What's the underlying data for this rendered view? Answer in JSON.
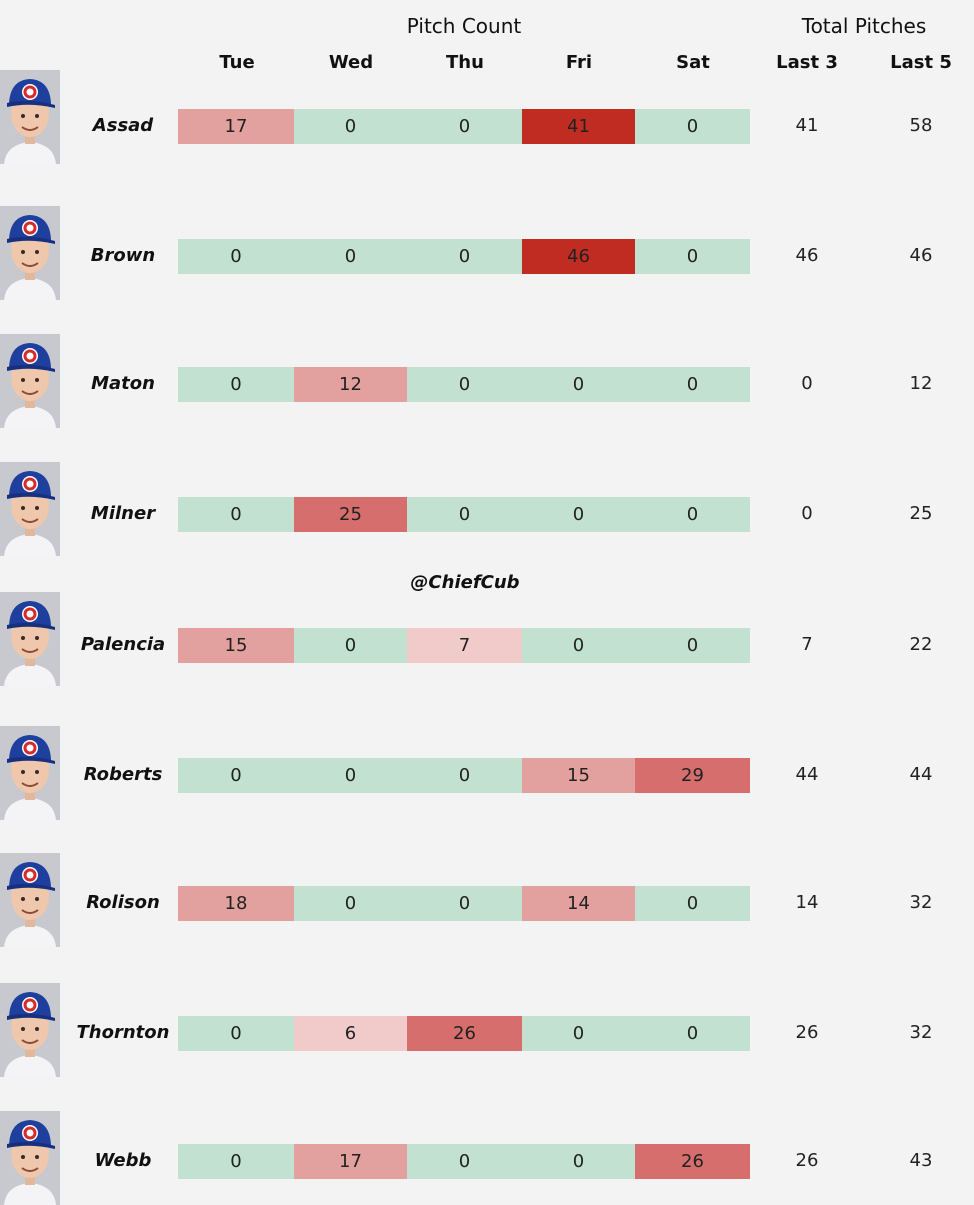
{
  "header": {
    "pitch_count_label": "Pitch Count",
    "total_pitches_label": "Total Pitches",
    "days": [
      "Tue",
      "Wed",
      "Thu",
      "Fri",
      "Sat"
    ],
    "totals": [
      "Last 3",
      "Last 5"
    ]
  },
  "watermark": "@ChiefCub",
  "colors": {
    "zero": "#c3e1d1",
    "light": "#f0cbca",
    "medium": "#e2a09e",
    "strong": "#d66e6d",
    "max": "#c02c22"
  },
  "chart_data": {
    "type": "table",
    "columns": [
      "Tue",
      "Wed",
      "Thu",
      "Fri",
      "Sat",
      "Last 3",
      "Last 5"
    ],
    "rows": [
      {
        "player": "Assad",
        "pitches": [
          17,
          0,
          0,
          41,
          0
        ],
        "last3": 41,
        "last5": 58
      },
      {
        "player": "Brown",
        "pitches": [
          0,
          0,
          0,
          46,
          0
        ],
        "last3": 46,
        "last5": 46
      },
      {
        "player": "Maton",
        "pitches": [
          0,
          12,
          0,
          0,
          0
        ],
        "last3": 0,
        "last5": 12
      },
      {
        "player": "Milner",
        "pitches": [
          0,
          25,
          0,
          0,
          0
        ],
        "last3": 0,
        "last5": 25
      },
      {
        "player": "Palencia",
        "pitches": [
          15,
          0,
          7,
          0,
          0
        ],
        "last3": 7,
        "last5": 22
      },
      {
        "player": "Roberts",
        "pitches": [
          0,
          0,
          0,
          15,
          29
        ],
        "last3": 44,
        "last5": 44
      },
      {
        "player": "Rolison",
        "pitches": [
          18,
          0,
          0,
          14,
          0
        ],
        "last3": 14,
        "last5": 32
      },
      {
        "player": "Thornton",
        "pitches": [
          0,
          6,
          26,
          0,
          0
        ],
        "last3": 26,
        "last5": 32
      },
      {
        "player": "Webb",
        "pitches": [
          0,
          17,
          0,
          0,
          26
        ],
        "last3": 26,
        "last5": 43
      }
    ]
  }
}
